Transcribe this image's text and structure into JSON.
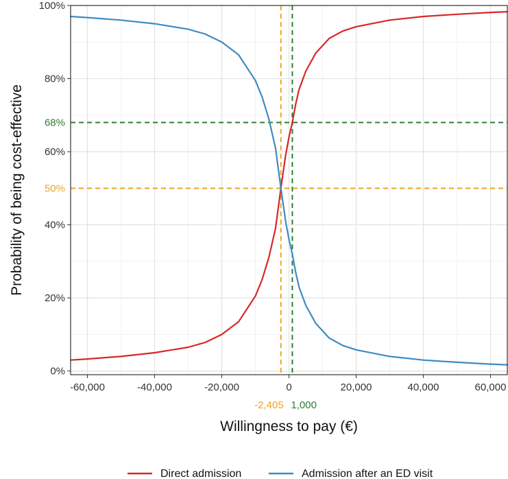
{
  "chart_data": {
    "type": "line",
    "xlabel": "Willingness to pay (€)",
    "ylabel": "Probability of being cost-effective",
    "xlim": [
      -65000,
      65000
    ],
    "ylim": [
      -0.01,
      1.0
    ],
    "grid": true,
    "x_ticks": [
      {
        "value": -60000,
        "label": "-60,000"
      },
      {
        "value": -40000,
        "label": "-40,000"
      },
      {
        "value": -20000,
        "label": "-20,000"
      },
      {
        "value": 0,
        "label": "0"
      },
      {
        "value": 20000,
        "label": "20,000"
      },
      {
        "value": 40000,
        "label": "40,000"
      },
      {
        "value": 60000,
        "label": "60,000"
      }
    ],
    "y_ticks": [
      {
        "value": 0.0,
        "label": "0%"
      },
      {
        "value": 0.2,
        "label": "20%"
      },
      {
        "value": 0.4,
        "label": "40%"
      },
      {
        "value": 0.6,
        "label": "60%"
      },
      {
        "value": 0.8,
        "label": "80%"
      },
      {
        "value": 1.0,
        "label": "100%"
      }
    ],
    "series": [
      {
        "name": "Direct admission",
        "color": "#d62728",
        "x": [
          -65000,
          -60000,
          -50000,
          -40000,
          -30000,
          -25000,
          -20000,
          -15000,
          -10000,
          -8000,
          -6000,
          -4000,
          -2405,
          -1000,
          0,
          1000,
          2000,
          3000,
          5000,
          8000,
          12000,
          16000,
          20000,
          30000,
          40000,
          50000,
          60000,
          65000
        ],
        "y": [
          0.03,
          0.033,
          0.04,
          0.05,
          0.065,
          0.078,
          0.1,
          0.135,
          0.205,
          0.25,
          0.31,
          0.39,
          0.5,
          0.59,
          0.64,
          0.68,
          0.73,
          0.77,
          0.82,
          0.87,
          0.91,
          0.93,
          0.942,
          0.96,
          0.97,
          0.976,
          0.981,
          0.983
        ]
      },
      {
        "name": "Admission after an ED visit",
        "color": "#3d8bc4",
        "x": [
          -65000,
          -60000,
          -50000,
          -40000,
          -30000,
          -25000,
          -20000,
          -15000,
          -10000,
          -8000,
          -6000,
          -4000,
          -2405,
          -1000,
          0,
          1000,
          2000,
          3000,
          5000,
          8000,
          12000,
          16000,
          20000,
          30000,
          40000,
          50000,
          60000,
          65000
        ],
        "y": [
          0.97,
          0.967,
          0.96,
          0.95,
          0.935,
          0.922,
          0.9,
          0.865,
          0.795,
          0.75,
          0.69,
          0.61,
          0.5,
          0.41,
          0.36,
          0.32,
          0.27,
          0.23,
          0.18,
          0.13,
          0.09,
          0.07,
          0.058,
          0.04,
          0.03,
          0.024,
          0.019,
          0.017
        ]
      }
    ],
    "reference_lines": [
      {
        "axis": "x",
        "value": -2405,
        "label": "-2,405",
        "color": "#f0a323"
      },
      {
        "axis": "x",
        "value": 1000,
        "label": "1,000",
        "color": "#2e7d32"
      },
      {
        "axis": "y",
        "value": 0.5,
        "label": "50%",
        "color": "#f0a323"
      },
      {
        "axis": "y",
        "value": 0.68,
        "label": "68%",
        "color": "#2e7d32"
      }
    ],
    "legend": {
      "position": "bottom",
      "entries": [
        "Direct admission",
        "Admission after an ED visit"
      ]
    }
  }
}
